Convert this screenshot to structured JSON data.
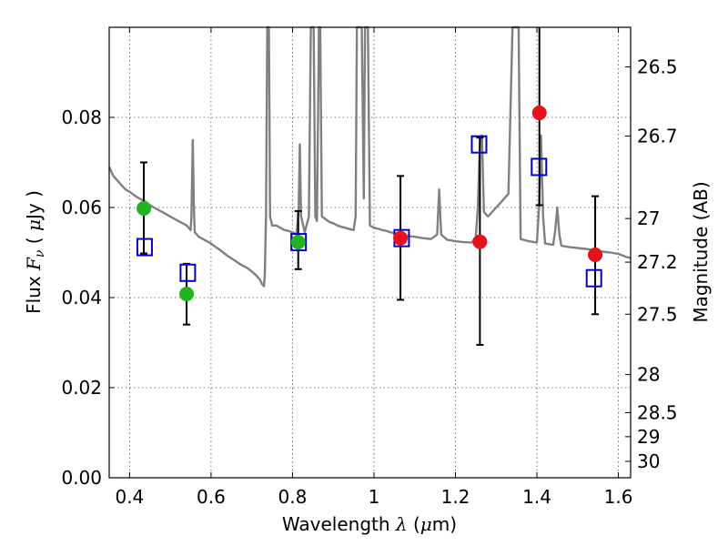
{
  "chart_data": {
    "type": "scatter",
    "xlabel_prefix": "Wavelength",
    "xlabel_symbol": "λ",
    "xlabel_unit_open": " (",
    "xlabel_unit_mu": "μ",
    "xlabel_unit_rest": "m)",
    "ylabel_prefix": "Flux",
    "ylabel_symbol": "F",
    "ylabel_subscript": "ν",
    "ylabel_unit_open": " ( ",
    "ylabel_unit_mu": "μ",
    "ylabel_unit_rest": "Jy )",
    "y2label": "Magnitude (AB)",
    "xlim": [
      0.35,
      1.63
    ],
    "ylim": [
      0.0,
      0.1
    ],
    "grid": true,
    "x_ticks": [
      {
        "value": 0.4,
        "label": "0.4"
      },
      {
        "value": 0.6,
        "label": "0.6"
      },
      {
        "value": 0.8,
        "label": "0.8"
      },
      {
        "value": 1.0,
        "label": "1"
      },
      {
        "value": 1.2,
        "label": "1.2"
      },
      {
        "value": 1.4,
        "label": "1.4"
      },
      {
        "value": 1.6,
        "label": "1.6"
      }
    ],
    "y_ticks": [
      {
        "value": 0.0,
        "label": "0.00"
      },
      {
        "value": 0.02,
        "label": "0.02"
      },
      {
        "value": 0.04,
        "label": "0.04"
      },
      {
        "value": 0.06,
        "label": "0.06"
      },
      {
        "value": 0.08,
        "label": "0.08"
      }
    ],
    "mag_ticks": [
      {
        "value": 26.5,
        "label": "26.5"
      },
      {
        "value": 26.7,
        "label": "26.7"
      },
      {
        "value": 27.0,
        "label": "27"
      },
      {
        "value": 27.2,
        "label": "27.2"
      },
      {
        "value": 27.5,
        "label": "27.5"
      },
      {
        "value": 28.0,
        "label": "28"
      },
      {
        "value": 28.5,
        "label": "28.5"
      },
      {
        "value": 29.0,
        "label": "29"
      },
      {
        "value": 30.0,
        "label": "30"
      }
    ],
    "colors": {
      "model": "#808080",
      "green": "#1fb51f",
      "red": "#e8111a",
      "box": "#0000cc",
      "errorbar": "#000000",
      "grid": "#555555"
    },
    "model_spectrum": {
      "name": "Model SED",
      "points": [
        [
          0.35,
          0.069
        ],
        [
          0.36,
          0.067
        ],
        [
          0.37,
          0.066
        ],
        [
          0.38,
          0.065
        ],
        [
          0.39,
          0.064
        ],
        [
          0.4,
          0.0635
        ],
        [
          0.41,
          0.0628
        ],
        [
          0.42,
          0.0622
        ],
        [
          0.43,
          0.0617
        ],
        [
          0.44,
          0.0612
        ],
        [
          0.45,
          0.0605
        ],
        [
          0.46,
          0.06
        ],
        [
          0.47,
          0.0595
        ],
        [
          0.48,
          0.059
        ],
        [
          0.49,
          0.0585
        ],
        [
          0.5,
          0.058
        ],
        [
          0.51,
          0.0575
        ],
        [
          0.52,
          0.057
        ],
        [
          0.53,
          0.0565
        ],
        [
          0.54,
          0.056
        ],
        [
          0.55,
          0.055
        ],
        [
          0.552,
          0.058
        ],
        [
          0.555,
          0.075
        ],
        [
          0.558,
          0.06
        ],
        [
          0.56,
          0.0545
        ],
        [
          0.57,
          0.0535
        ],
        [
          0.58,
          0.053
        ],
        [
          0.59,
          0.0525
        ],
        [
          0.6,
          0.052
        ],
        [
          0.61,
          0.0513
        ],
        [
          0.62,
          0.0507
        ],
        [
          0.63,
          0.05
        ],
        [
          0.64,
          0.0493
        ],
        [
          0.65,
          0.0487
        ],
        [
          0.66,
          0.0481
        ],
        [
          0.67,
          0.0475
        ],
        [
          0.68,
          0.047
        ],
        [
          0.69,
          0.0465
        ],
        [
          0.7,
          0.0458
        ],
        [
          0.71,
          0.045
        ],
        [
          0.72,
          0.044
        ],
        [
          0.725,
          0.043
        ],
        [
          0.73,
          0.0425
        ],
        [
          0.732,
          0.045
        ],
        [
          0.735,
          0.058
        ],
        [
          0.738,
          0.1
        ],
        [
          0.742,
          0.1
        ],
        [
          0.745,
          0.058
        ],
        [
          0.75,
          0.056
        ],
        [
          0.76,
          0.056
        ],
        [
          0.77,
          0.0555
        ],
        [
          0.78,
          0.055
        ],
        [
          0.79,
          0.0548
        ],
        [
          0.8,
          0.0545
        ],
        [
          0.81,
          0.054
        ],
        [
          0.815,
          0.06
        ],
        [
          0.818,
          0.074
        ],
        [
          0.821,
          0.058
        ],
        [
          0.83,
          0.0545
        ],
        [
          0.84,
          0.058
        ],
        [
          0.845,
          0.1
        ],
        [
          0.852,
          0.1
        ],
        [
          0.856,
          0.058
        ],
        [
          0.86,
          0.057
        ],
        [
          0.865,
          0.1
        ],
        [
          0.868,
          0.1
        ],
        [
          0.872,
          0.058
        ],
        [
          0.88,
          0.0575
        ],
        [
          0.89,
          0.0568
        ],
        [
          0.9,
          0.0565
        ],
        [
          0.91,
          0.056
        ],
        [
          0.92,
          0.0557
        ],
        [
          0.93,
          0.0555
        ],
        [
          0.94,
          0.0552
        ],
        [
          0.95,
          0.055
        ],
        [
          0.955,
          0.058
        ],
        [
          0.958,
          0.1
        ],
        [
          0.97,
          0.1
        ],
        [
          0.975,
          0.062
        ],
        [
          0.978,
          0.1
        ],
        [
          0.985,
          0.1
        ],
        [
          0.99,
          0.056
        ],
        [
          1.0,
          0.0555
        ],
        [
          1.01,
          0.0553
        ],
        [
          1.02,
          0.055
        ],
        [
          1.03,
          0.0548
        ],
        [
          1.04,
          0.0545
        ],
        [
          1.05,
          0.0543
        ],
        [
          1.06,
          0.054
        ],
        [
          1.08,
          0.0537
        ],
        [
          1.1,
          0.0535
        ],
        [
          1.12,
          0.0532
        ],
        [
          1.14,
          0.053
        ],
        [
          1.155,
          0.054
        ],
        [
          1.16,
          0.064
        ],
        [
          1.165,
          0.054
        ],
        [
          1.18,
          0.0528
        ],
        [
          1.2,
          0.0525
        ],
        [
          1.22,
          0.0523
        ],
        [
          1.24,
          0.0522
        ],
        [
          1.25,
          0.0535
        ],
        [
          1.255,
          0.06
        ],
        [
          1.26,
          0.075
        ],
        [
          1.265,
          0.076
        ],
        [
          1.27,
          0.059
        ],
        [
          1.28,
          0.058
        ],
        [
          1.29,
          0.059
        ],
        [
          1.3,
          0.06
        ],
        [
          1.31,
          0.061
        ],
        [
          1.32,
          0.062
        ],
        [
          1.33,
          0.063
        ],
        [
          1.34,
          0.1
        ],
        [
          1.355,
          0.1
        ],
        [
          1.36,
          0.053
        ],
        [
          1.38,
          0.0525
        ],
        [
          1.4,
          0.0522
        ],
        [
          1.405,
          0.06
        ],
        [
          1.41,
          0.076
        ],
        [
          1.415,
          0.058
        ],
        [
          1.42,
          0.052
        ],
        [
          1.44,
          0.0517
        ],
        [
          1.445,
          0.055
        ],
        [
          1.45,
          0.06
        ],
        [
          1.455,
          0.054
        ],
        [
          1.46,
          0.0515
        ],
        [
          1.48,
          0.0512
        ],
        [
          1.5,
          0.051
        ],
        [
          1.52,
          0.0508
        ],
        [
          1.54,
          0.0505
        ],
        [
          1.56,
          0.0502
        ],
        [
          1.58,
          0.05
        ],
        [
          1.6,
          0.0497
        ],
        [
          1.62,
          0.049
        ],
        [
          1.63,
          0.0488
        ]
      ]
    },
    "photometry_green": {
      "name": "Green photometry",
      "points": [
        {
          "x": 0.435,
          "y": 0.0598,
          "yerr_low": 0.0498,
          "yerr_high": 0.07
        },
        {
          "x": 0.54,
          "y": 0.0408,
          "yerr_low": 0.034,
          "yerr_high": 0.0475
        },
        {
          "x": 0.814,
          "y": 0.0523,
          "yerr_low": 0.0463,
          "yerr_high": 0.0592
        }
      ]
    },
    "photometry_red": {
      "name": "Red photometry",
      "points": [
        {
          "x": 1.065,
          "y": 0.0532,
          "yerr_low": 0.0395,
          "yerr_high": 0.067
        },
        {
          "x": 1.26,
          "y": 0.0524,
          "yerr_low": 0.0295,
          "yerr_high": 0.0755
        },
        {
          "x": 1.406,
          "y": 0.081,
          "yerr_low": 0.0605,
          "yerr_high": 0.1
        },
        {
          "x": 1.543,
          "y": 0.0495,
          "yerr_low": 0.0363,
          "yerr_high": 0.0625
        }
      ]
    },
    "model_bands": {
      "name": "Model band flux",
      "points": [
        {
          "x": 0.437,
          "y": 0.0512
        },
        {
          "x": 0.543,
          "y": 0.0455
        },
        {
          "x": 0.815,
          "y": 0.0523
        },
        {
          "x": 1.068,
          "y": 0.0532
        },
        {
          "x": 1.258,
          "y": 0.074
        },
        {
          "x": 1.405,
          "y": 0.069
        },
        {
          "x": 1.54,
          "y": 0.0443
        }
      ]
    }
  }
}
